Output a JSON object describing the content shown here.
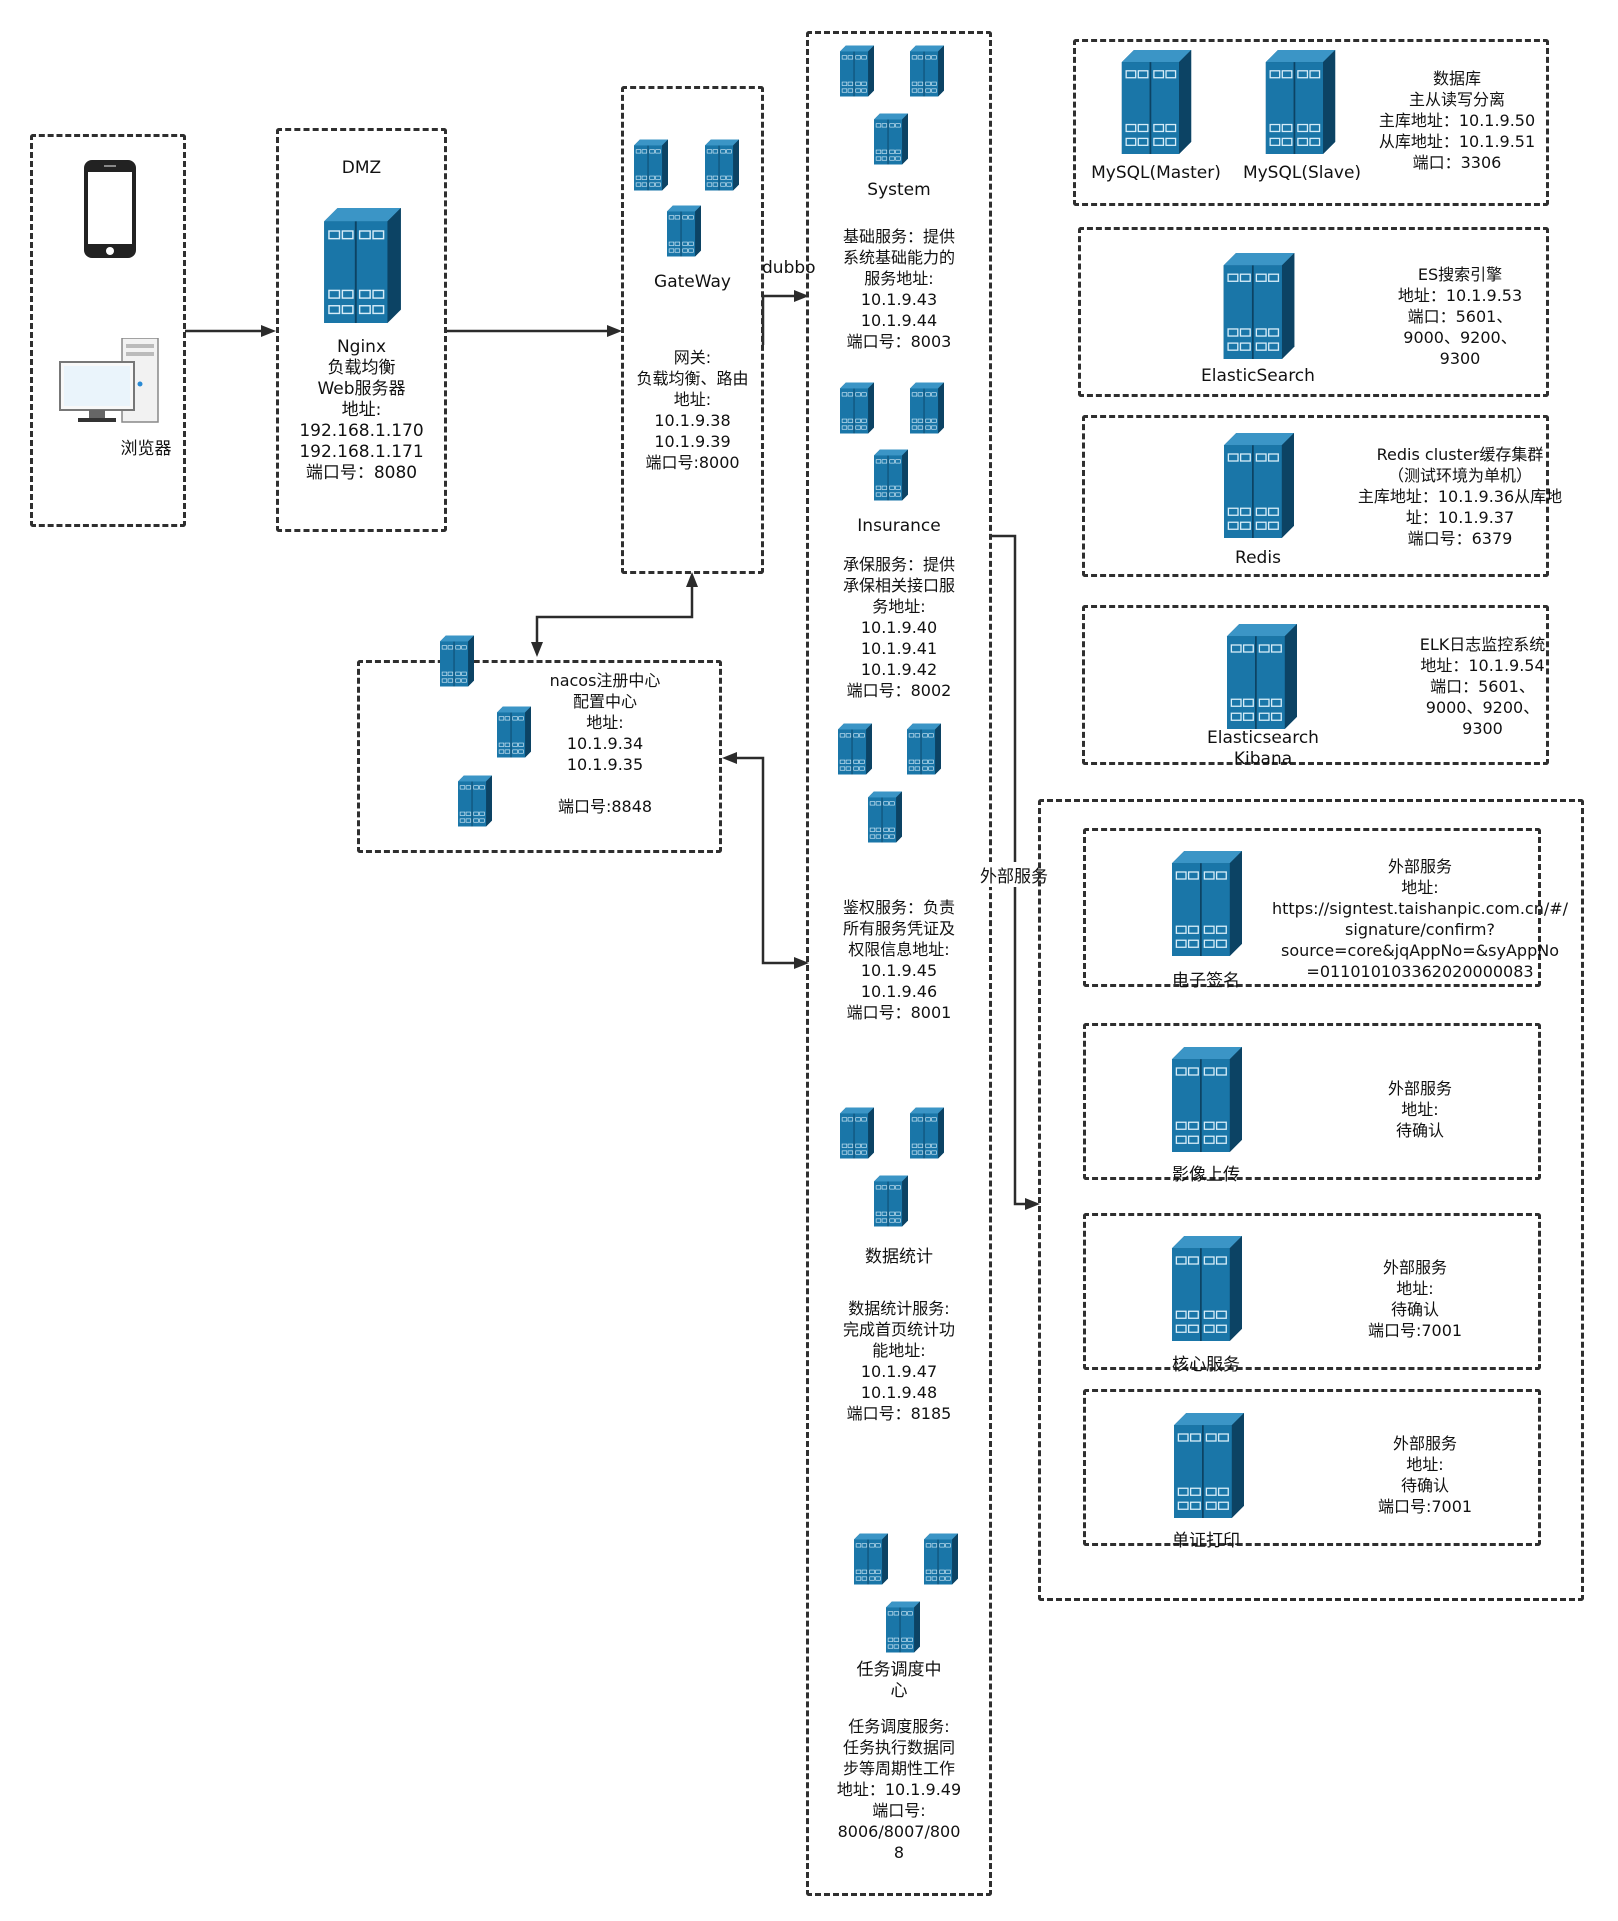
{
  "client": {
    "browser_label": "浏览器"
  },
  "dmz": {
    "title": "DMZ",
    "desc": "Nginx\n负载均衡\nWeb服务器\n地址:\n192.168.1.170\n192.168.1.171\n端口号：8080"
  },
  "gateway": {
    "name": "GateWay",
    "desc": "网关:\n负载均衡、路由\n地址:\n10.1.9.38\n10.1.9.39\n端口号:8000"
  },
  "nacos": {
    "desc": "nacos注册中心\n配置中心\n地址:\n10.1.9.34\n10.1.9.35\n\n端口号:8848"
  },
  "links": {
    "dubbo": "dubbo",
    "external": "外部服务"
  },
  "services": {
    "system": {
      "name": "System",
      "desc": "基础服务：提供\n系统基础能力的\n服务地址:\n10.1.9.43\n10.1.9.44\n端口号：8003"
    },
    "insurance": {
      "name": "Insurance",
      "desc": "承保服务：提供\n承保相关接口服\n务地址:\n10.1.9.40\n10.1.9.41\n10.1.9.42\n端口号：8002"
    },
    "auth": {
      "desc": "鉴权服务：负责\n所有服务凭证及\n权限信息地址:\n10.1.9.45\n10.1.9.46\n端口号：8001"
    },
    "stats": {
      "name": "数据统计",
      "desc": "数据统计服务:\n完成首页统计功\n能地址:\n10.1.9.47\n10.1.9.48\n端口号：8185"
    },
    "scheduler": {
      "name": "任务调度中\n心",
      "desc": "任务调度服务:\n任务执行数据同\n步等周期性工作\n地址：10.1.9.49\n端口号:\n8006/8007/800\n8"
    }
  },
  "infra": {
    "mysql": {
      "master": "MySQL(Master)",
      "slave": "MySQL(Slave)",
      "desc": "数据库\n主从读写分离\n主库地址：10.1.9.50\n从库地址：10.1.9.51\n端口：3306"
    },
    "es": {
      "name": "ElasticSearch",
      "desc": "ES搜索引擎\n地址：10.1.9.53\n端口：5601、\n9000、9200、\n9300"
    },
    "redis": {
      "name": "Redis",
      "desc": "Redis cluster缓存集群\n（测试环境为单机）\n主库地址：10.1.9.36从库地\n址：10.1.9.37\n端口号：6379"
    },
    "elk": {
      "name": "Elasticsearch\nKibana",
      "desc": "ELK日志监控系统\n地址：10.1.9.54\n端口：5601、\n9000、9200、\n9300"
    }
  },
  "external": {
    "esign": {
      "name": "电子签名",
      "desc": "外部服务\n地址:\nhttps://signtest.taishanpic.com.cn/#/\nsignature/confirm?\nsource=core&jqAppNo=&syAppNo\n=011010103362020000083"
    },
    "image": {
      "name": "影像上传",
      "desc": "外部服务\n地址:\n待确认"
    },
    "core": {
      "name": "核心服务",
      "desc": "外部服务\n地址:\n待确认\n端口号:7001"
    },
    "print": {
      "name": "单证打印",
      "desc": "外部服务\n地址:\n待确认\n端口号:7001"
    }
  },
  "colors": {
    "server": "#1a76a8",
    "server_dark": "#0f5379",
    "server_light": "#3b95c6"
  }
}
